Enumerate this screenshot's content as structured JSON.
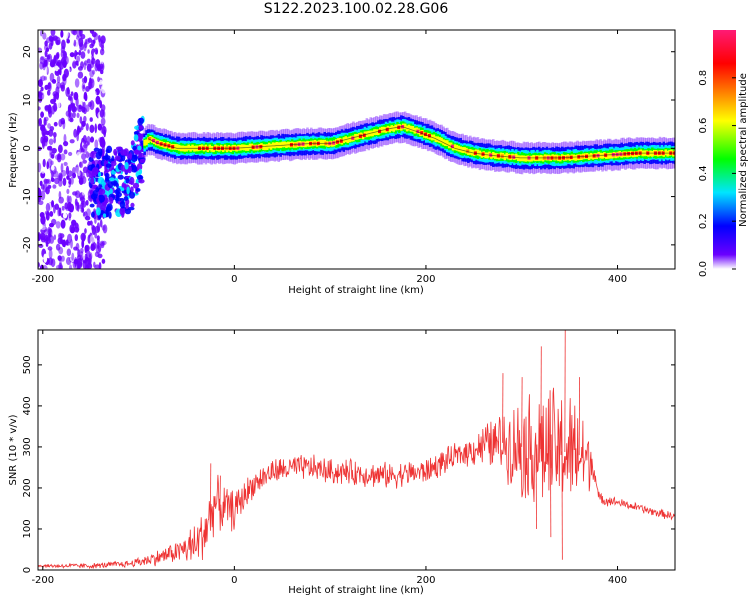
{
  "title": "S122.2023.100.02.28.G06",
  "chart_data": [
    {
      "type": "heatmap",
      "title": "S122.2023.100.02.28.G06",
      "xlabel": "Height of straight line (km)",
      "ylabel": "Frequency (Hz)",
      "xlim": [
        -205,
        460
      ],
      "ylim": [
        -25,
        24.5
      ],
      "x_ticks": [
        -200,
        0,
        200,
        400
      ],
      "y_ticks": [
        -20,
        -10,
        0,
        10,
        20
      ],
      "colorbar": {
        "label": "Normalized spectral amplitude",
        "range": [
          0,
          1
        ],
        "ticks": [
          0.0,
          0.2,
          0.4,
          0.6,
          0.8
        ],
        "tick_labels": [
          "0.0",
          "0.2",
          "0.4",
          "0.6",
          "0.8"
        ],
        "colors": [
          "#ffffff",
          "#6a00ff",
          "#0000ff",
          "#00e5ff",
          "#00ff00",
          "#ffff00",
          "#ff7f00",
          "#ff0000",
          "#ff1a75"
        ]
      },
      "ridge_frequency": {
        "x": [
          -110,
          -100,
          -95,
          -90,
          -80,
          -60,
          -40,
          -20,
          0,
          40,
          80,
          100,
          120,
          140,
          160,
          175,
          190,
          210,
          230,
          250,
          270,
          300,
          340,
          380,
          420,
          460
        ],
        "y": [
          -7,
          -2,
          1,
          2,
          1,
          0,
          0,
          0,
          0,
          0.5,
          1,
          1,
          2,
          3,
          4,
          4.5,
          3.5,
          2,
          0,
          -1,
          -1.5,
          -2,
          -2,
          -1.5,
          -1,
          -1
        ]
      },
      "grid": false
    },
    {
      "type": "line",
      "xlabel": "Height of straight line (km)",
      "ylabel": "SNR (10 * v/v)",
      "xlim": [
        -205,
        460
      ],
      "ylim": [
        0,
        585
      ],
      "x_ticks": [
        -200,
        0,
        200,
        400
      ],
      "y_ticks": [
        0,
        100,
        200,
        300,
        400,
        500
      ],
      "series": [
        {
          "color": "#ee3333",
          "baseline": {
            "x": [
              -205,
              -150,
              -110,
              -80,
              -60,
              -40,
              -30,
              -20,
              -10,
              0,
              10,
              20,
              40,
              60,
              80,
              100,
              120,
              160,
              200,
              220,
              240,
              260,
              280,
              300,
              320,
              340,
              360,
              375,
              380,
              400,
              440,
              460
            ],
            "y": [
              10,
              10,
              15,
              30,
              45,
              60,
              100,
              165,
              150,
              145,
              180,
              210,
              240,
              248,
              250,
              240,
              238,
              230,
              240,
              265,
              285,
              305,
              310,
              300,
              295,
              290,
              280,
              260,
              175,
              165,
              140,
              130
            ]
          },
          "noise": {
            "x": [
              -205,
              -110,
              -60,
              -30,
              20,
              240,
              280,
              300,
              330,
              360,
              380,
              400,
              460
            ],
            "amplitude": [
              4,
              8,
              25,
              70,
              30,
              30,
              70,
              120,
              150,
              130,
              15,
              10,
              10
            ]
          },
          "peaks": [
            [
              -25,
              260
            ],
            [
              -15,
              230
            ],
            [
              280,
              480
            ],
            [
              300,
              470
            ],
            [
              320,
              545
            ],
            [
              345,
              590
            ],
            [
              360,
              470
            ],
            [
              342,
              25
            ],
            [
              330,
              80
            ],
            [
              315,
              100
            ]
          ]
        }
      ],
      "grid": false
    }
  ]
}
